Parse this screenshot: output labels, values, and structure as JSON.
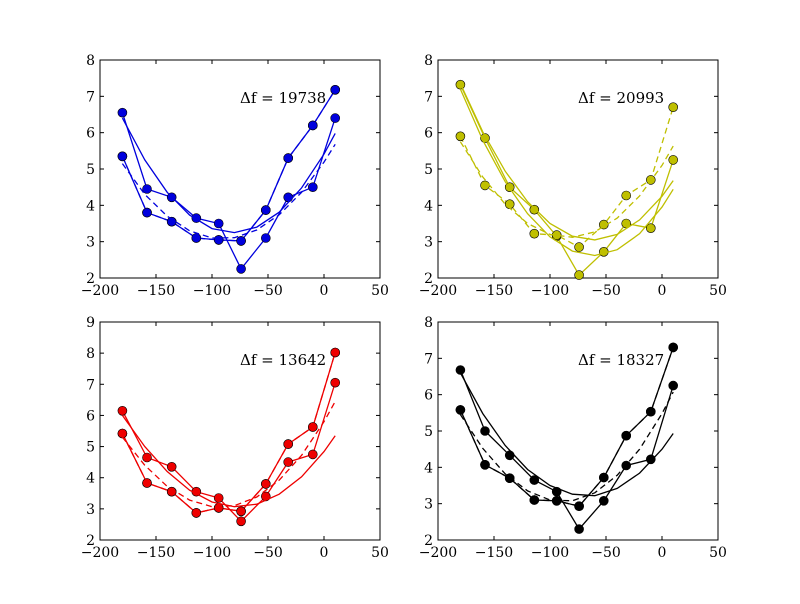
{
  "chart_data": [
    {
      "type": "line",
      "title": "",
      "color": "#0000dd",
      "annotation": "Δf = 19738",
      "xlim": [
        -200,
        50
      ],
      "ylim": [
        2,
        8
      ],
      "xticks": [
        "−200",
        "−150",
        "−100",
        "−50",
        "0",
        "50"
      ],
      "yticks": [
        "2",
        "3",
        "4",
        "5",
        "6",
        "7",
        "8"
      ],
      "series": [
        {
          "style": "solid",
          "x": [
            -180,
            -158,
            -136,
            -114,
            -94,
            -74,
            -52,
            -32,
            -10,
            10
          ],
          "y": [
            6.55,
            4.45,
            4.22,
            3.65,
            3.5,
            2.25,
            3.1,
            4.22,
            4.5,
            6.4
          ]
        },
        {
          "style": "solid",
          "x": [
            -180,
            -158,
            -136,
            -114,
            -94,
            -74,
            -52,
            -32,
            -10,
            10
          ],
          "y": [
            5.35,
            3.8,
            3.55,
            3.1,
            3.05,
            3.02,
            3.87,
            5.3,
            6.2,
            7.18
          ]
        },
        {
          "style": "dashed",
          "x": [
            -180,
            -158,
            -136,
            -114,
            -94,
            -74,
            -52,
            -32,
            -10,
            10
          ],
          "y": [
            5.35,
            3.8,
            3.55,
            3.1,
            3.05,
            3.02,
            3.87,
            5.3,
            6.2,
            7.18
          ]
        },
        {
          "style": "solid-fit",
          "x": [
            -180,
            -160,
            -140,
            -120,
            -100,
            -80,
            -60,
            -40,
            -20,
            0,
            10
          ],
          "y": [
            6.4,
            5.25,
            4.36,
            3.73,
            3.36,
            3.25,
            3.4,
            3.81,
            4.48,
            5.41,
            5.98
          ]
        },
        {
          "style": "dashed-fit",
          "x": [
            -180,
            -160,
            -140,
            -120,
            -100,
            -80,
            -60,
            -40,
            -20,
            0,
            10
          ],
          "y": [
            5.15,
            4.3,
            3.7,
            3.3,
            3.1,
            3.11,
            3.32,
            3.74,
            4.36,
            5.19,
            5.68
          ]
        }
      ]
    },
    {
      "type": "line",
      "title": "",
      "color": "#bfbf00",
      "annotation": "Δf = 20993",
      "xlim": [
        -200,
        50
      ],
      "ylim": [
        2,
        8
      ],
      "xticks": [
        "−200",
        "−150",
        "−100",
        "−50",
        "0",
        "50"
      ],
      "yticks": [
        "2",
        "3",
        "4",
        "5",
        "6",
        "7",
        "8"
      ],
      "series": [
        {
          "style": "solid",
          "x": [
            -180,
            -158,
            -136,
            -114,
            -94,
            -74,
            -52,
            -32,
            -10,
            10
          ],
          "y": [
            7.32,
            5.85,
            4.5,
            3.88,
            3.15,
            2.08,
            2.72,
            3.5,
            3.37,
            5.25
          ]
        },
        {
          "style": "dashed",
          "x": [
            -180,
            -158,
            -136,
            -114,
            -94,
            -74,
            -52,
            -32,
            -10,
            10
          ],
          "y": [
            5.9,
            4.55,
            4.03,
            3.22,
            3.18,
            2.85,
            3.47,
            4.27,
            4.7,
            6.7
          ]
        },
        {
          "style": "solid-fit",
          "x": [
            -180,
            -160,
            -140,
            -120,
            -100,
            -80,
            -60,
            -40,
            -20,
            0,
            10
          ],
          "y": [
            7.2,
            5.79,
            4.65,
            3.77,
            3.13,
            2.74,
            2.62,
            2.78,
            3.22,
            3.95,
            4.44
          ]
        },
        {
          "style": "dashed-fit",
          "x": [
            -180,
            -160,
            -140,
            -120,
            -100,
            -80,
            -60,
            -40,
            -20,
            0,
            10
          ],
          "y": [
            5.75,
            4.78,
            4.03,
            3.5,
            3.2,
            3.12,
            3.27,
            3.65,
            4.26,
            5.1,
            5.63
          ]
        },
        {
          "style": "solid-fit",
          "x": [
            -180,
            -160,
            -140,
            -120,
            -100,
            -80,
            -60,
            -40,
            -20,
            0,
            10
          ],
          "y": [
            7.35,
            6.02,
            4.94,
            4.1,
            3.5,
            3.15,
            3.05,
            3.2,
            3.6,
            4.25,
            4.68
          ]
        }
      ]
    },
    {
      "type": "line",
      "title": "",
      "color": "#ee0000",
      "annotation": "Δf = 13642",
      "xlim": [
        -200,
        50
      ],
      "ylim": [
        2,
        9
      ],
      "xticks": [
        "−200",
        "−150",
        "−100",
        "−50",
        "0",
        "50"
      ],
      "yticks": [
        "2",
        "3",
        "4",
        "5",
        "6",
        "7",
        "8",
        "9"
      ],
      "series": [
        {
          "style": "solid",
          "x": [
            -180,
            -158,
            -136,
            -114,
            -94,
            -74,
            -52,
            -32,
            -10,
            10
          ],
          "y": [
            6.15,
            4.65,
            4.35,
            3.55,
            3.35,
            2.6,
            3.4,
            4.5,
            4.75,
            7.05
          ]
        },
        {
          "style": "solid",
          "x": [
            -180,
            -158,
            -136,
            -114,
            -94,
            -74,
            -52,
            -32,
            -10,
            10
          ],
          "y": [
            5.42,
            3.83,
            3.55,
            2.87,
            3.03,
            2.92,
            3.8,
            5.08,
            5.63,
            8.02
          ]
        },
        {
          "style": "dashed",
          "x": [
            -180,
            -158,
            -136,
            -114,
            -94,
            -74,
            -52,
            -32,
            -10,
            10
          ],
          "y": [
            5.42,
            3.83,
            3.55,
            2.87,
            3.03,
            2.92,
            3.8,
            5.08,
            5.63,
            8.02
          ]
        },
        {
          "style": "solid-fit",
          "x": [
            -180,
            -160,
            -140,
            -120,
            -100,
            -80,
            -60,
            -40,
            -20,
            0,
            10
          ],
          "y": [
            6.0,
            5.0,
            4.2,
            3.6,
            3.22,
            3.07,
            3.15,
            3.47,
            4.03,
            4.84,
            5.35
          ]
        },
        {
          "style": "dashed-fit",
          "x": [
            -180,
            -160,
            -140,
            -120,
            -100,
            -80,
            -60,
            -40,
            -20,
            0,
            10
          ],
          "y": [
            5.3,
            4.4,
            3.72,
            3.28,
            3.07,
            3.1,
            3.38,
            3.92,
            4.72,
            5.8,
            6.45
          ]
        }
      ]
    },
    {
      "type": "line",
      "title": "",
      "color": "#000000",
      "annotation": "Δf = 18327",
      "xlim": [
        -200,
        50
      ],
      "ylim": [
        2,
        8
      ],
      "xticks": [
        "−200",
        "−150",
        "−100",
        "−50",
        "0",
        "50"
      ],
      "yticks": [
        "2",
        "3",
        "4",
        "5",
        "6",
        "7",
        "8"
      ],
      "series": [
        {
          "style": "solid",
          "x": [
            -180,
            -158,
            -136,
            -114,
            -94,
            -74,
            -52,
            -32,
            -10,
            10
          ],
          "y": [
            6.68,
            5.0,
            4.33,
            3.65,
            3.33,
            2.3,
            3.08,
            4.05,
            4.22,
            6.25
          ]
        },
        {
          "style": "solid",
          "x": [
            -180,
            -158,
            -136,
            -114,
            -94,
            -74,
            -52,
            -32,
            -10,
            10
          ],
          "y": [
            5.58,
            4.07,
            3.7,
            3.1,
            3.08,
            2.93,
            3.72,
            4.87,
            5.53,
            7.3
          ]
        },
        {
          "style": "dashed",
          "x": [
            -180,
            -158,
            -136,
            -114,
            -94,
            -74,
            -52,
            -32,
            -10,
            10
          ],
          "y": [
            5.58,
            4.07,
            3.7,
            3.1,
            3.08,
            2.93,
            3.72,
            4.87,
            5.53,
            7.3
          ]
        },
        {
          "style": "solid-fit",
          "x": [
            -180,
            -160,
            -140,
            -120,
            -100,
            -80,
            -60,
            -40,
            -20,
            0,
            10
          ],
          "y": [
            6.6,
            5.48,
            4.6,
            3.94,
            3.5,
            3.26,
            3.22,
            3.42,
            3.84,
            4.5,
            4.93
          ]
        },
        {
          "style": "dashed-fit",
          "x": [
            -180,
            -160,
            -140,
            -120,
            -100,
            -80,
            -60,
            -40,
            -20,
            0,
            10
          ],
          "y": [
            5.45,
            4.52,
            3.82,
            3.35,
            3.1,
            3.08,
            3.3,
            3.78,
            4.5,
            5.48,
            6.07
          ]
        }
      ]
    }
  ]
}
